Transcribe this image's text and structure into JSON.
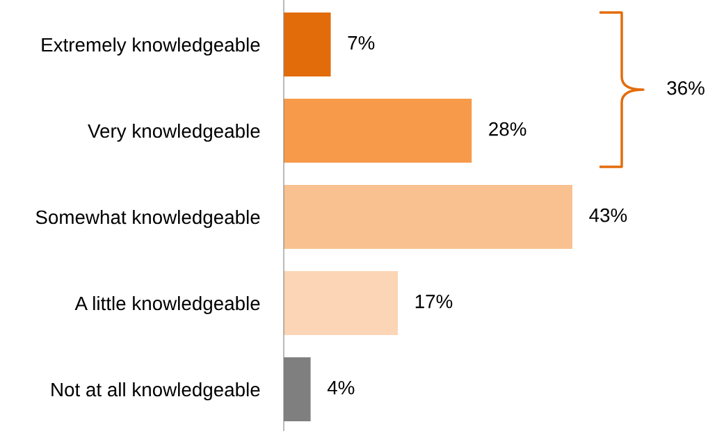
{
  "chart_data": {
    "type": "bar",
    "orientation": "horizontal",
    "categories": [
      "Extremely knowledgeable",
      "Very knowledgeable",
      "Somewhat knowledgeable",
      "A little knowledgeable",
      "Not at all knowledgeable"
    ],
    "values": [
      7,
      28,
      43,
      17,
      4
    ],
    "value_labels": [
      "7%",
      "28%",
      "43%",
      "17%",
      "4%"
    ],
    "colors": [
      "#e36c0a",
      "#f79a4a",
      "#f9c190",
      "#fbd5b5",
      "#7f7f7f"
    ],
    "tick_labels": "y",
    "annotations": [
      "36%"
    ]
  }
}
